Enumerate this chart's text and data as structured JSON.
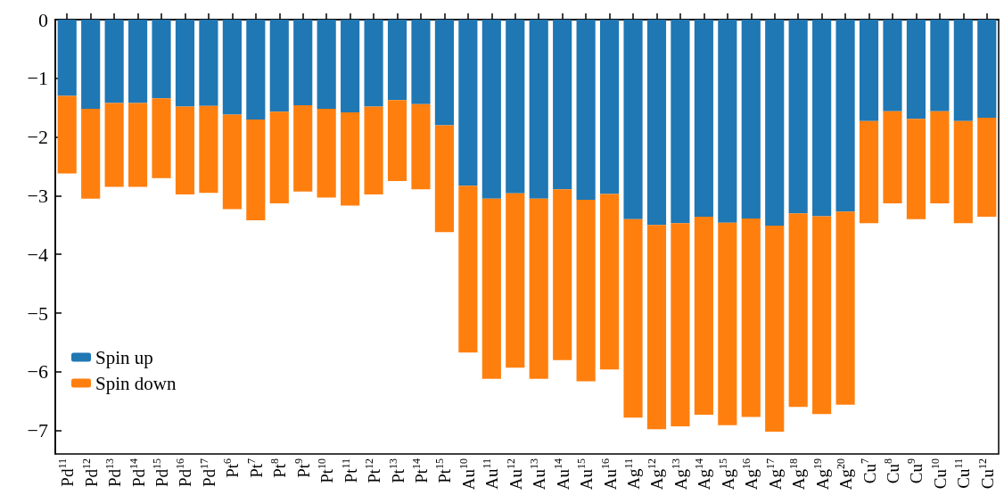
{
  "chart_data": {
    "type": "bar",
    "stacked": true,
    "categories": [
      "Pd$^{11}$",
      "Pd$^{12}$",
      "Pd$^{13}$",
      "Pd$^{14}$",
      "Pd$^{15}$",
      "Pd$^{16}$",
      "Pd$^{17}$",
      "Pt$^{6}$",
      "Pt$^{7}$",
      "Pt$^{8}$",
      "Pt$^{9}$",
      "Pt$^{10}$",
      "Pt$^{11}$",
      "Pt$^{12}$",
      "Pt$^{13}$",
      "Pt$^{14}$",
      "Pt$^{15}$",
      "Au$^{10}$",
      "Au$^{11}$",
      "Au$^{12}$",
      "Au$^{13}$",
      "Au$^{14}$",
      "Au$^{15}$",
      "Au$^{16}$",
      "Ag$^{11}$",
      "Ag$^{12}$",
      "Ag$^{13}$",
      "Ag$^{14}$",
      "Ag$^{15}$",
      "Ag$^{16}$",
      "Ag$^{17}$",
      "Ag$^{18}$",
      "Ag$^{19}$",
      "Ag$^{20}$",
      "Cu$^{7}$",
      "Cu$^{8}$",
      "Cu$^{9}$",
      "Cu$^{10}$",
      "Cu$^{11}$",
      "Cu$^{12}$"
    ],
    "series": [
      {
        "name": "Spin up",
        "color": "#1f77b4",
        "values": [
          -1.3,
          -1.52,
          -1.42,
          -1.42,
          -1.34,
          -1.48,
          -1.47,
          -1.62,
          -1.7,
          -1.57,
          -1.46,
          -1.52,
          -1.58,
          -1.48,
          -1.37,
          -1.44,
          -1.8,
          -2.83,
          -3.05,
          -2.96,
          -3.05,
          -2.89,
          -3.07,
          -2.97,
          -3.4,
          -3.5,
          -3.47,
          -3.36,
          -3.46,
          -3.39,
          -3.51,
          -3.3,
          -3.35,
          -3.27,
          -1.73,
          -1.56,
          -1.69,
          -1.56,
          -1.73,
          -1.67
        ]
      },
      {
        "name": "Spin down",
        "color": "#ff7f0e",
        "values": [
          -1.32,
          -1.53,
          -1.43,
          -1.43,
          -1.36,
          -1.5,
          -1.48,
          -1.61,
          -1.72,
          -1.56,
          -1.47,
          -1.51,
          -1.59,
          -1.5,
          -1.38,
          -1.45,
          -1.82,
          -2.84,
          -3.07,
          -2.97,
          -3.07,
          -2.91,
          -3.09,
          -2.99,
          -3.38,
          -3.48,
          -3.46,
          -3.37,
          -3.45,
          -3.38,
          -3.51,
          -3.3,
          -3.37,
          -3.29,
          -1.74,
          -1.57,
          -1.71,
          -1.57,
          -1.74,
          -1.69
        ]
      }
    ],
    "ylim": [
      -7.4,
      0
    ],
    "yticks": [
      0,
      -1,
      -2,
      -3,
      -4,
      -5,
      -6,
      -7
    ],
    "grid": false,
    "legend": "bottom left"
  }
}
